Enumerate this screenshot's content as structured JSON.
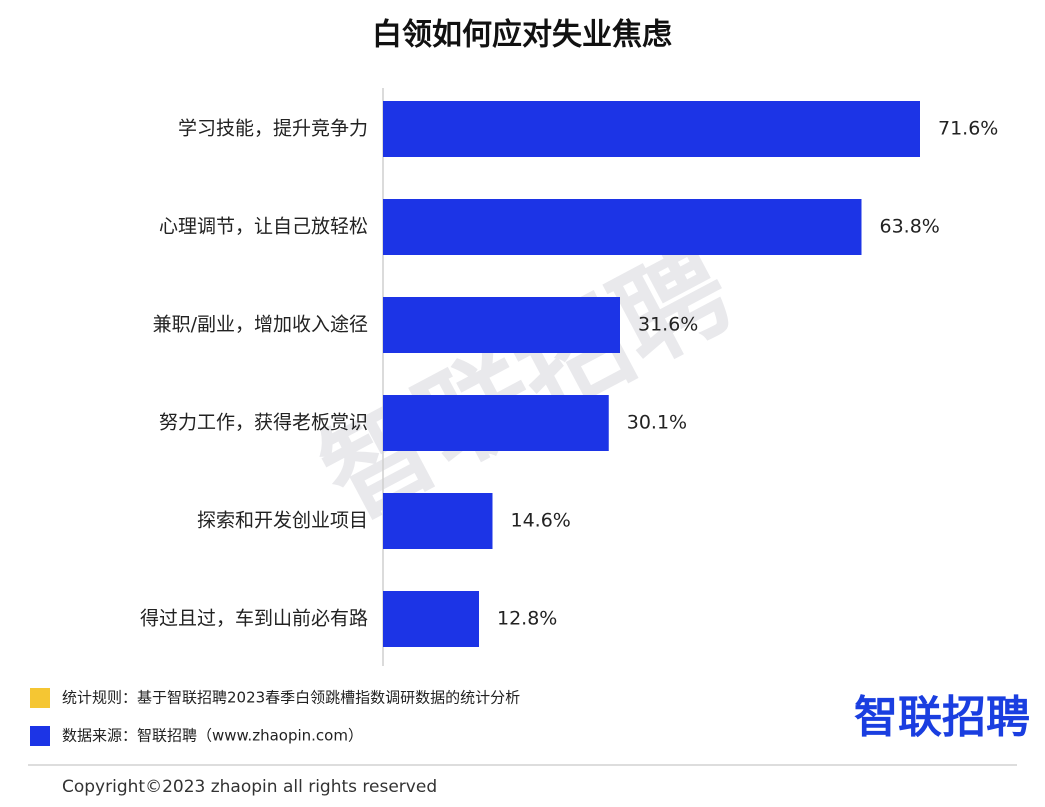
{
  "chart_data": {
    "type": "bar",
    "orientation": "horizontal",
    "title": "白领如何应对失业焦虑",
    "categories": [
      "学习技能，提升竞争力",
      "心理调节，让自己放轻松",
      "兼职/副业，增加收入途径",
      "努力工作，获得老板赏识",
      "探索和开发创业项目",
      "得过且过，车到山前必有路"
    ],
    "values": [
      71.6,
      63.8,
      31.6,
      30.1,
      14.6,
      12.8
    ],
    "value_labels": [
      "71.6%",
      "63.8%",
      "31.6%",
      "30.1%",
      "14.6%",
      "12.8%"
    ],
    "color": "#1c34e6",
    "watermark": "智联招聘"
  },
  "notes": [
    {
      "text": "统计规则：基于智联招聘2023春季白领跳槽指数调研数据的统计分析",
      "color": "#f5c633"
    },
    {
      "text": "数据来源：智联招聘（www.zhaopin.com）",
      "color": "#1c34e6"
    }
  ],
  "logo": "智联招聘",
  "copyright": "Copyright©2023 zhaopin all rights reserved"
}
